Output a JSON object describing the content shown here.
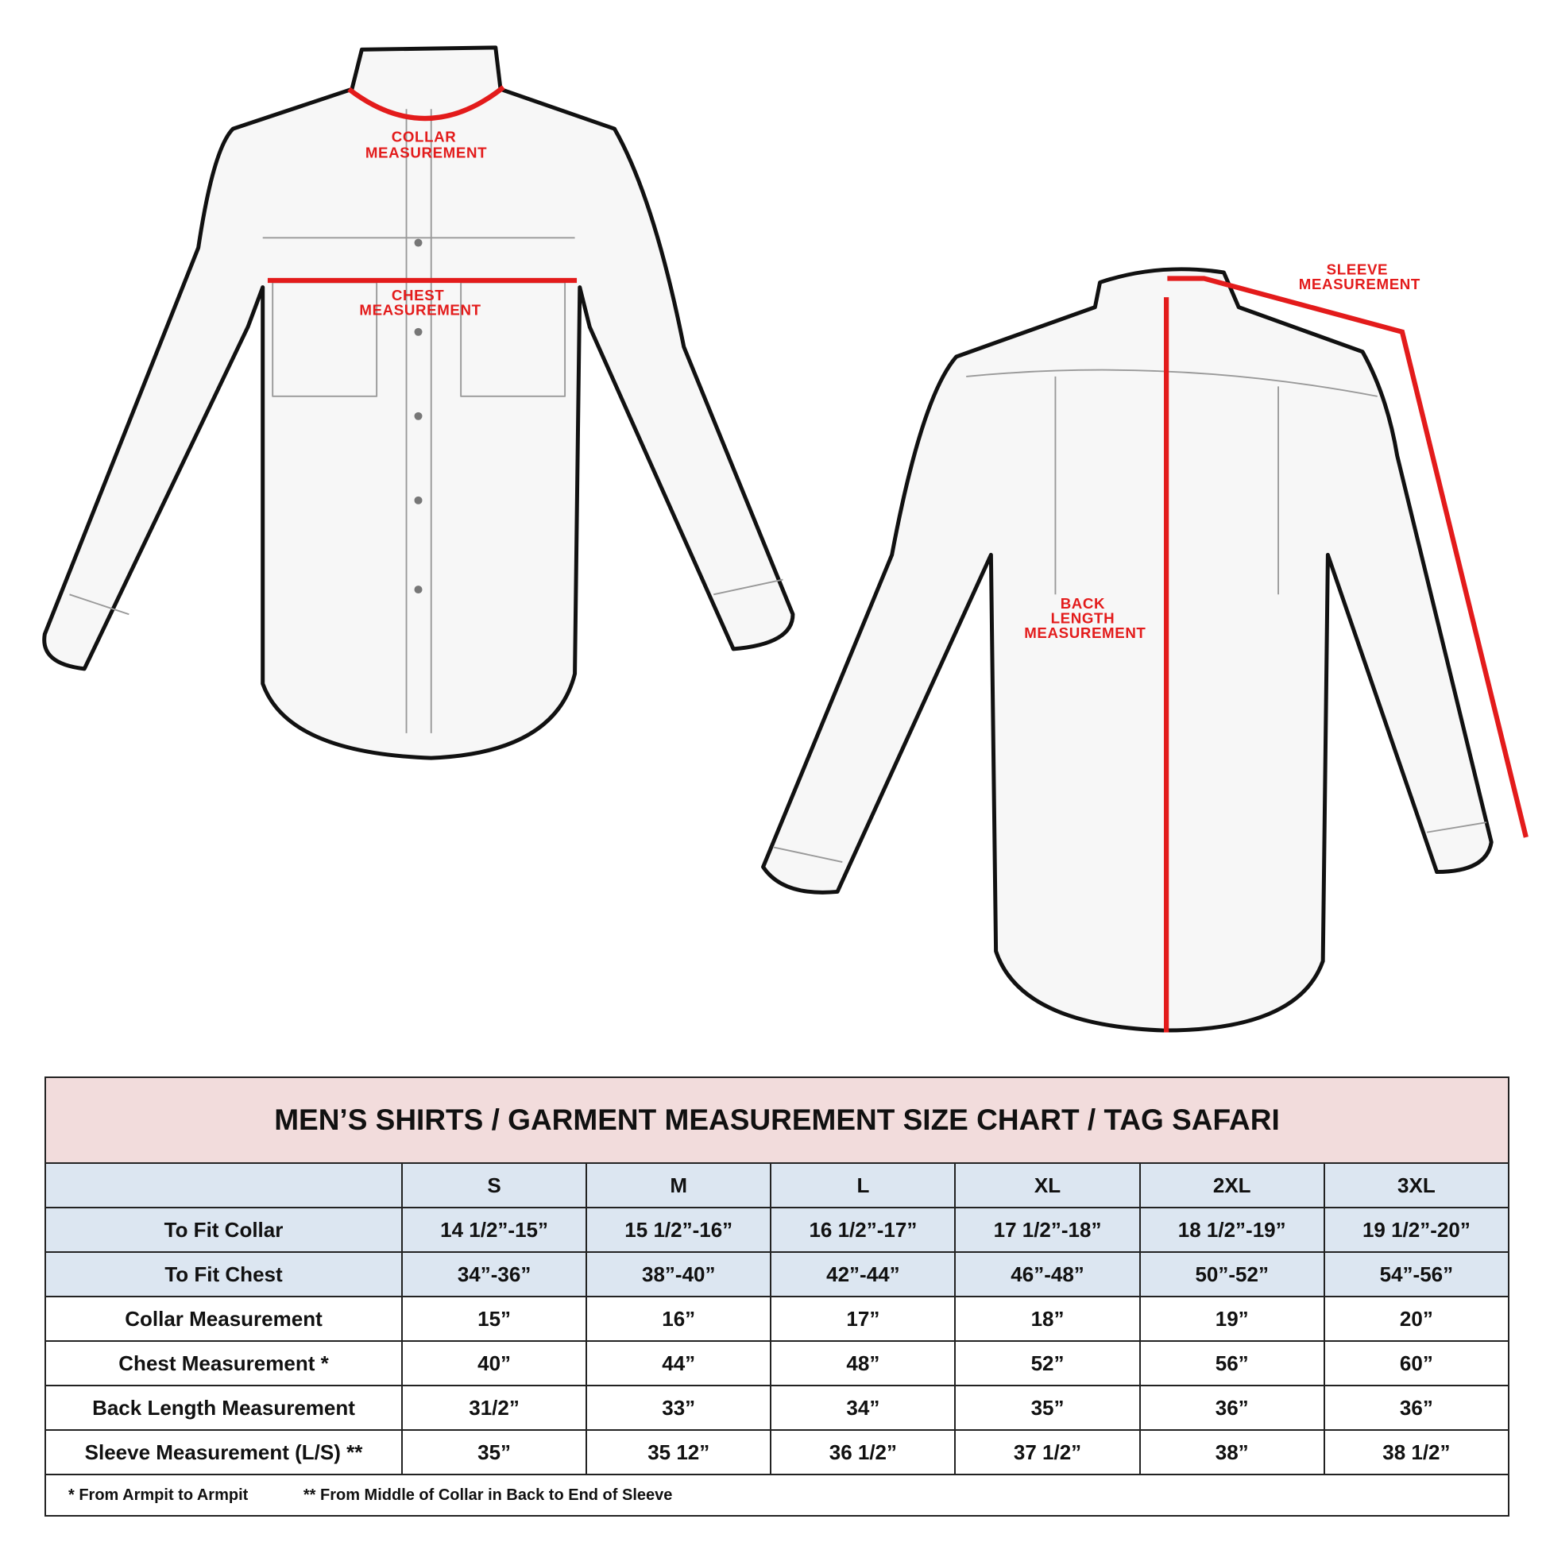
{
  "illustration": {
    "labels": {
      "collar": [
        "COLLAR",
        "MEASUREMENT"
      ],
      "chest": [
        "CHEST",
        "MEASUREMENT"
      ],
      "back_length": [
        "BACK",
        "LENGTH",
        "MEASUREMENT"
      ],
      "sleeve": [
        "SLEEVE",
        "MEASUREMENT"
      ]
    },
    "measure_color": "#e31b1b"
  },
  "size_chart": {
    "title": "MEN’S SHIRTS / GARMENT MEASUREMENT SIZE CHART / TAG SAFARI",
    "sizes": [
      "S",
      "M",
      "L",
      "XL",
      "2XL",
      "3XL"
    ],
    "rows": [
      {
        "label": "To Fit Collar",
        "values": [
          "14 1/2”-15”",
          "15 1/2”-16”",
          "16 1/2”-17”",
          "17 1/2”-18”",
          "18 1/2”-19”",
          "19 1/2”-20”"
        ]
      },
      {
        "label": "To Fit Chest",
        "values": [
          "34”-36”",
          "38”-40”",
          "42”-44”",
          "46”-48”",
          "50”-52”",
          "54”-56”"
        ]
      },
      {
        "label": "Collar Measurement",
        "values": [
          "15”",
          "16”",
          "17”",
          "18”",
          "19”",
          "20”"
        ]
      },
      {
        "label": "Chest Measurement *",
        "values": [
          "40”",
          "44”",
          "48”",
          "52”",
          "56”",
          "60”"
        ]
      },
      {
        "label": "Back Length Measurement",
        "values": [
          "31/2”",
          "33”",
          "34”",
          "35”",
          "36”",
          "36”"
        ]
      },
      {
        "label": "Sleeve Measurement (L/S) **",
        "values": [
          "35”",
          "35 12”",
          "36 1/2”",
          "37 1/2”",
          "38”",
          "38 1/2”"
        ]
      }
    ],
    "footnotes": [
      "* From Armpit to Armpit",
      "** From Middle of Collar in Back to End of Sleeve"
    ],
    "colors": {
      "title_bg": "#f2dcdc",
      "fit_rows_bg": "#dce6f1"
    }
  }
}
